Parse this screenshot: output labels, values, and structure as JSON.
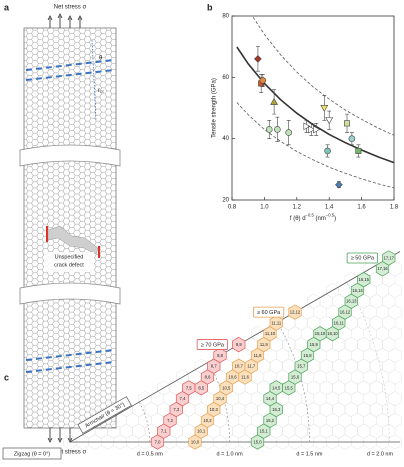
{
  "panel_a": {
    "label": "a",
    "top_stress": "Net stress σ",
    "bottom_stress": "Net stress σ",
    "theta": "θ",
    "rcc_main": "r",
    "rcc_sub": "cc",
    "crack_lines": [
      "Unspecified",
      "crack defect"
    ]
  },
  "chart_data": {
    "type": "scatter",
    "label": "b",
    "x_label_parts": [
      "f (θ) d",
      "−0.5",
      " (nm",
      "−0.5",
      ")"
    ],
    "y_label": "Tensile strength (GPa)",
    "xlim": [
      0.8,
      1.8
    ],
    "xticks": [
      0.8,
      {
        "value": 1,
        "label": "1.0"
      },
      1.2,
      1.4,
      1.6,
      1.8
    ],
    "ylim": [
      20,
      80
    ],
    "yticks": [
      20,
      40,
      60,
      80
    ],
    "series": [
      {
        "color": "#a83224",
        "marker": "diamond",
        "x": [
          0.96
        ],
        "values": [
          66
        ],
        "errors": [
          4
        ]
      },
      {
        "color": "#d9542b",
        "marker": "square",
        "x": [
          0.98
        ],
        "values": [
          58
        ],
        "errors": [
          3
        ]
      },
      {
        "color": "#e8873a",
        "marker": "circle",
        "x": [
          0.99
        ],
        "values": [
          59
        ],
        "errors": [
          2
        ]
      },
      {
        "color": "#b5a43a",
        "marker": "triangle",
        "x": [
          1.06
        ],
        "values": [
          52
        ],
        "errors": [
          4
        ]
      },
      {
        "color": "#bfe3b8",
        "marker": "circle",
        "x": [
          1.03,
          1.08,
          1.15
        ],
        "values": [
          43,
          43,
          42
        ],
        "errors": [
          3,
          4,
          4
        ]
      },
      {
        "color": "#ffffff",
        "marker": "triangle-right",
        "x": [
          1.26,
          1.29,
          1.32
        ],
        "values": [
          44,
          43,
          43
        ],
        "errors": [
          2,
          2,
          2
        ]
      },
      {
        "color": "#f2e36b",
        "marker": "triangle-down",
        "x": [
          1.37
        ],
        "values": [
          50
        ],
        "errors": [
          4
        ]
      },
      {
        "color": "#ffffff",
        "marker": "triangle-down",
        "x": [
          1.4
        ],
        "values": [
          46
        ],
        "errors": [
          3
        ]
      },
      {
        "color": "#7dc4b8",
        "marker": "circle",
        "x": [
          1.39
        ],
        "values": [
          36
        ],
        "errors": [
          2
        ]
      },
      {
        "color": "#4c7fb8",
        "marker": "diamond",
        "x": [
          1.46
        ],
        "values": [
          25
        ],
        "errors": [
          1
        ]
      },
      {
        "color": "#cfe0a0",
        "marker": "square",
        "x": [
          1.51
        ],
        "values": [
          45
        ],
        "errors": [
          3
        ]
      },
      {
        "color": "#9ad0cf",
        "marker": "circle",
        "x": [
          1.54
        ],
        "values": [
          40
        ],
        "errors": [
          2
        ]
      },
      {
        "color": "#73b86a",
        "marker": "square",
        "x": [
          1.58
        ],
        "values": [
          36
        ],
        "errors": [
          2
        ]
      }
    ],
    "lines": [
      {
        "style": "solid",
        "color": "#333333",
        "x": [
          0.83,
          0.9,
          1.0,
          1.1,
          1.2,
          1.3,
          1.4,
          1.5,
          1.6,
          1.7,
          1.8
        ],
        "values": [
          69.9,
          64.4,
          58,
          52.7,
          48.3,
          44.6,
          41.4,
          38.7,
          36.3,
          34.1,
          32.2
        ]
      },
      {
        "style": "dashed",
        "color": "#555555",
        "x": [
          0.93,
          1.0,
          1.1,
          1.2,
          1.3,
          1.4,
          1.5,
          1.6,
          1.7,
          1.8
        ],
        "values": [
          79.6,
          74,
          67.3,
          61.7,
          56.9,
          52.9,
          49.3,
          46.3,
          43.5,
          41.1
        ]
      },
      {
        "style": "dashed",
        "color": "#555555",
        "x": [
          0.83,
          0.9,
          1.0,
          1.1,
          1.2,
          1.3,
          1.4,
          1.5,
          1.6,
          1.7,
          1.8
        ],
        "values": [
          51.8,
          47.8,
          43,
          39.1,
          35.8,
          33.1,
          30.7,
          28.7,
          26.9,
          25.3,
          23.9
        ]
      }
    ]
  },
  "panel_c": {
    "label": "c",
    "armchair": "Armchair (θ = 30°)",
    "zigzag": "Zigzag (θ = 0°)",
    "diameters": [
      {
        "value": 0.5,
        "label": "d = 0.5 nm"
      },
      {
        "value": 1.0,
        "label": "d = 1.0 nm"
      },
      {
        "value": 1.5,
        "label": "d = 1.5 nm"
      },
      {
        "value": 2.0,
        "label": "d = 2.0 nm"
      }
    ],
    "groups": [
      {
        "title": "≥ 70 GPa",
        "color": "#e05a5a",
        "fill": "#f9cfcf",
        "cells": [
          "7,0",
          "7,1",
          "7,2",
          "7,3",
          "7,4",
          "7,5",
          "8,5",
          "8,6",
          "8,7",
          "8,8",
          "9,9"
        ]
      },
      {
        "title": "≥ 60 GPa",
        "color": "#e9a050",
        "fill": "#fbe0bd",
        "cells": [
          "10,0",
          "10,1",
          "10,2",
          "10,3",
          "10,4",
          "10,5",
          "10,6",
          "10,7",
          "11,6",
          "11,7",
          "11,8",
          "11,9",
          "11,10",
          "11,11",
          "12,12"
        ]
      },
      {
        "title": "≥ 50 GPa",
        "color": "#4aa35a",
        "fill": "#d3ecd3",
        "cells": [
          "15,0",
          "15,1",
          "15,2",
          "15,3",
          "14,4",
          "14,5",
          "15,5",
          "15,6",
          "15,7",
          "15,8",
          "15,9",
          "15,10",
          "16,10",
          "16,11",
          "16,12",
          "16,13",
          "16,14",
          "16,15",
          "17,16",
          "17,17"
        ]
      }
    ]
  }
}
